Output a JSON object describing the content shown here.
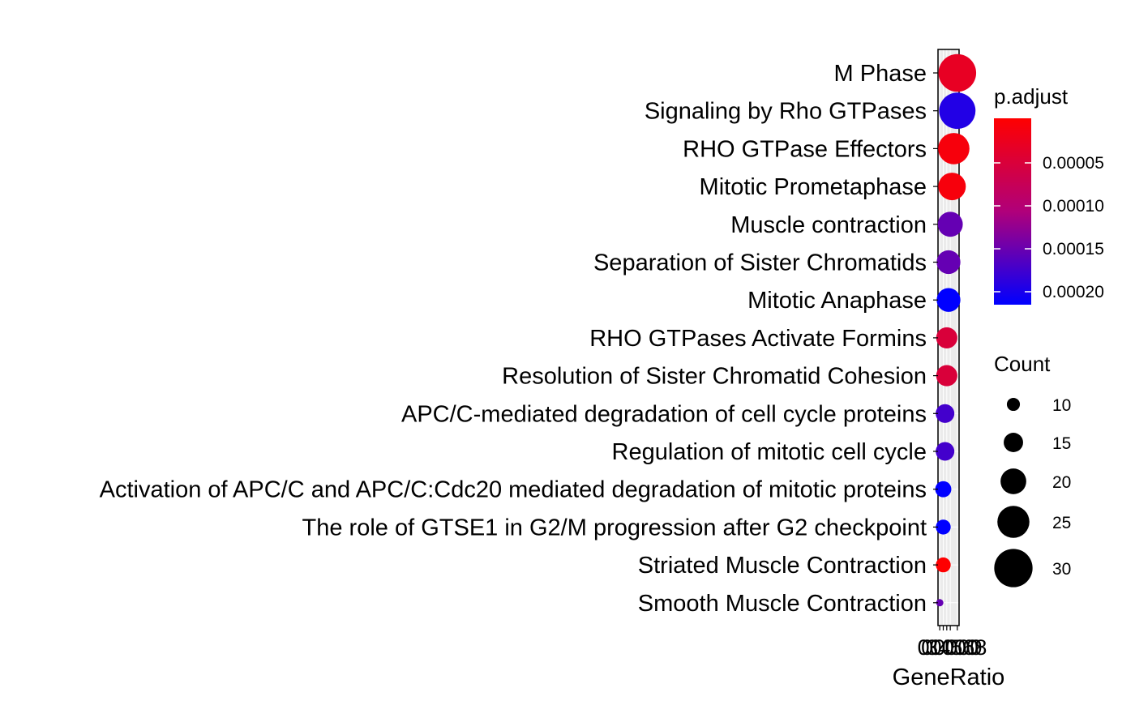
{
  "chart_data": {
    "type": "scatter",
    "subtype": "dotplot",
    "xlabel": "GeneRatio",
    "x_tick_labels_text": "0.03 0.04 0.05 0.06 0.08",
    "x_ticks": [
      0.03,
      0.04,
      0.05,
      0.06,
      0.08
    ],
    "xlim": [
      0.025,
      0.085
    ],
    "grid": true,
    "categories": [
      "M Phase",
      "Signaling by Rho GTPases",
      "RHO GTPase Effectors",
      "Mitotic Prometaphase",
      "Muscle contraction",
      "Separation of Sister Chromatids",
      "Mitotic Anaphase",
      "RHO GTPases Activate Formins",
      "Resolution of Sister Chromatid Cohesion",
      "APC/C-mediated degradation of cell cycle proteins",
      "Regulation of mitotic cell cycle",
      "Activation of APC/C and APC/C:Cdc20 mediated degradation of mitotic proteins",
      "The role of GTSE1 in G2/M progression after G2 checkpoint",
      "Striated Muscle Contraction",
      "Smooth Muscle Contraction"
    ],
    "points": [
      {
        "gene_ratio": 0.08,
        "count": 32,
        "p_adjust": 3e-05
      },
      {
        "gene_ratio": 0.08,
        "count": 31,
        "p_adjust": 0.00019
      },
      {
        "gene_ratio": 0.07,
        "count": 27,
        "p_adjust": 1e-05
      },
      {
        "gene_ratio": 0.065,
        "count": 24,
        "p_adjust": 1e-05
      },
      {
        "gene_ratio": 0.06,
        "count": 22,
        "p_adjust": 0.00015
      },
      {
        "gene_ratio": 0.055,
        "count": 21,
        "p_adjust": 0.00015
      },
      {
        "gene_ratio": 0.055,
        "count": 21,
        "p_adjust": 0.00021
      },
      {
        "gene_ratio": 0.05,
        "count": 19,
        "p_adjust": 5e-05
      },
      {
        "gene_ratio": 0.05,
        "count": 19,
        "p_adjust": 5e-05
      },
      {
        "gene_ratio": 0.045,
        "count": 17,
        "p_adjust": 0.00017
      },
      {
        "gene_ratio": 0.045,
        "count": 17,
        "p_adjust": 0.00017
      },
      {
        "gene_ratio": 0.04,
        "count": 15,
        "p_adjust": 0.00021
      },
      {
        "gene_ratio": 0.04,
        "count": 14,
        "p_adjust": 0.00021
      },
      {
        "gene_ratio": 0.04,
        "count": 14,
        "p_adjust": 1e-06
      },
      {
        "gene_ratio": 0.03,
        "count": 8,
        "p_adjust": 0.00015
      }
    ],
    "color_legend": {
      "title": "p.adjust",
      "min": 0.0,
      "max": 0.00021,
      "tick_values": [
        5e-05,
        0.0001,
        0.00015,
        0.0002
      ],
      "tick_labels": [
        "0.00005",
        "0.00010",
        "0.00015",
        "0.00020"
      ],
      "low_color": "#FF0000",
      "high_color": "#0000FF"
    },
    "size_legend": {
      "title": "Count",
      "values": [
        10,
        15,
        20,
        25,
        30
      ],
      "labels": [
        "10",
        "15",
        "20",
        "25",
        "30"
      ],
      "color": "#000000"
    },
    "colors": {
      "panel_bg": "#EBEBEB",
      "grid": "#FFFFFF",
      "axis": "#000000",
      "text": "#000000"
    }
  }
}
